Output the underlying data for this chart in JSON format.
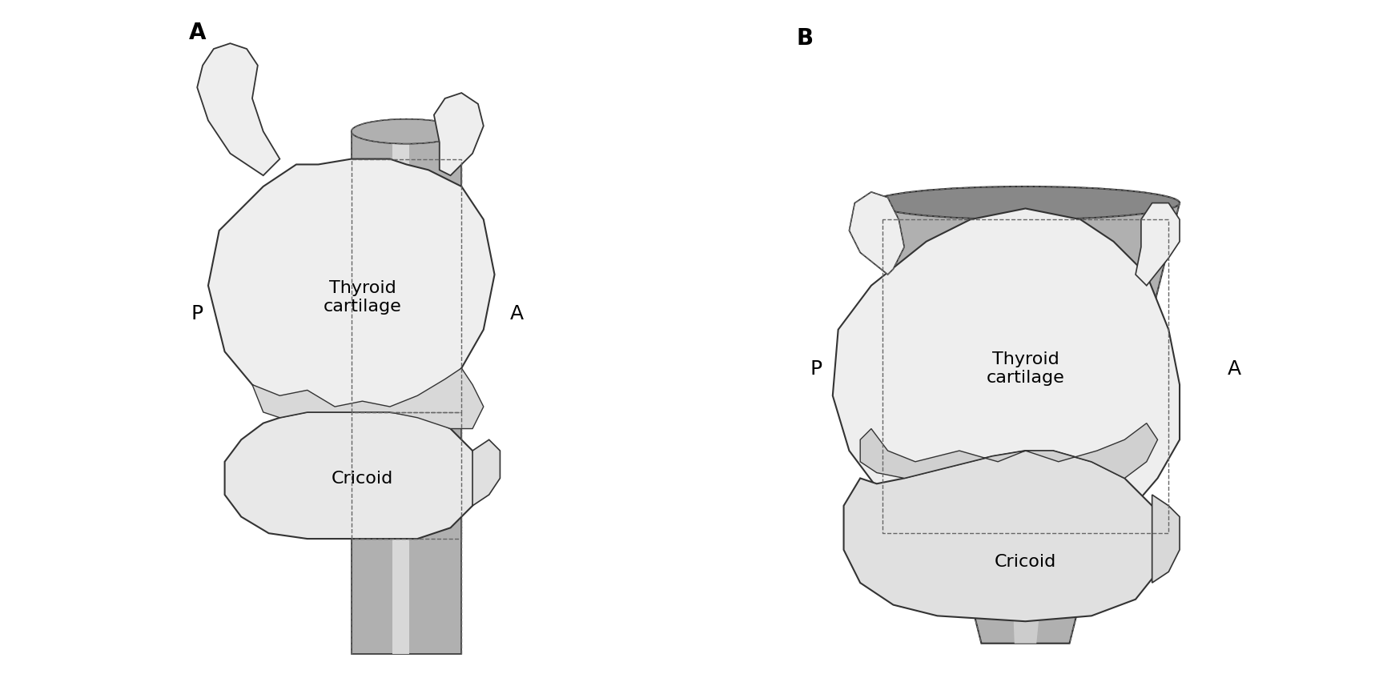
{
  "background_color": "#ffffff",
  "label_A_left": "A",
  "label_B_right": "B",
  "label_P": "P",
  "label_A": "A",
  "thyroid_cartilage_text": "Thyroid\ncartilage",
  "cricoid_text": "Cricoid",
  "light_gray": "#e8e8e8",
  "mid_gray": "#b0b0b0",
  "dark_gray": "#888888",
  "darker_gray": "#666666",
  "outline_color": "#333333",
  "dashed_color": "#666666",
  "font_size_label": 20,
  "font_size_PA": 18,
  "font_size_text": 16
}
